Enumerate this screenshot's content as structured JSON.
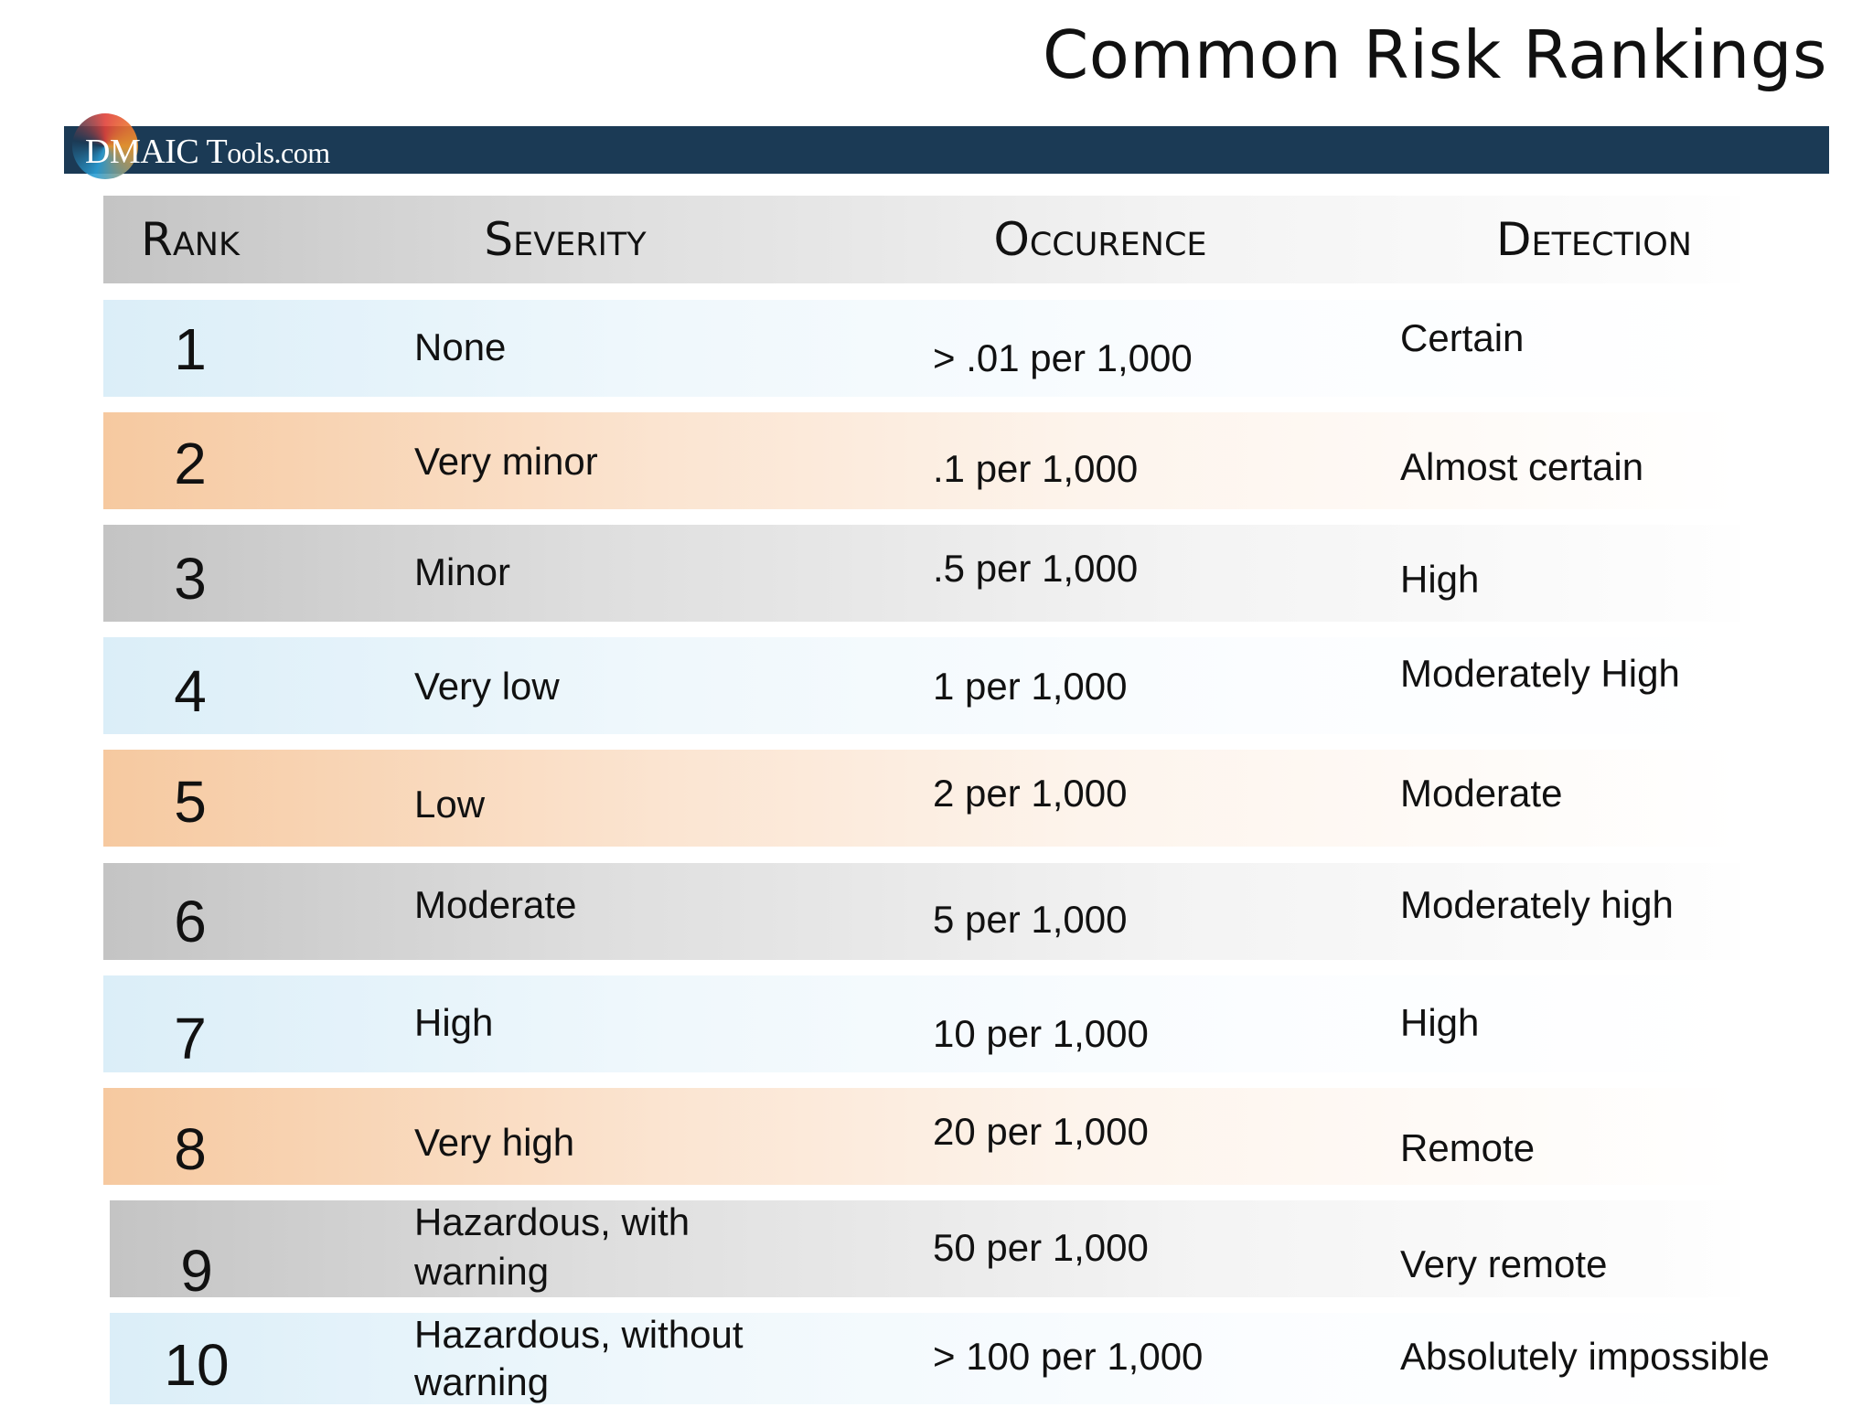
{
  "title": "Common Risk Rankings",
  "logo": {
    "text_main": "DMAIC T",
    "text_tail": "ools.com"
  },
  "headers": {
    "rank": "Rank",
    "severity": "Severity",
    "occurence": "Occurence",
    "detection": "Detection"
  },
  "rows": [
    {
      "rank": "1",
      "severity": "None",
      "occurence": "> .01 per 1,000",
      "detection": "Certain"
    },
    {
      "rank": "2",
      "severity": "Very minor",
      "occurence": ".1 per 1,000",
      "detection": "Almost certain"
    },
    {
      "rank": "3",
      "severity": "Minor",
      "occurence": ".5 per 1,000",
      "detection": "High"
    },
    {
      "rank": "4",
      "severity": "Very low",
      "occurence": "1 per 1,000",
      "detection": "Moderately High"
    },
    {
      "rank": "5",
      "severity": "Low",
      "occurence": "2 per 1,000",
      "detection": "Moderate"
    },
    {
      "rank": "6",
      "severity": "Moderate",
      "occurence": "5 per 1,000",
      "detection": "Moderately high"
    },
    {
      "rank": "7",
      "severity": "High",
      "occurence": "10 per 1,000",
      "detection": "High"
    },
    {
      "rank": "8",
      "severity": "Very high",
      "occurence": "20 per 1,000",
      "detection": "Remote"
    },
    {
      "rank": "9",
      "severity_line1": "Hazardous, with",
      "severity_line2": "warning",
      "occurence": "50 per 1,000",
      "detection": "Very remote"
    },
    {
      "rank": "10",
      "severity_line1": "Hazardous, without",
      "severity_line2": "warning",
      "occurence": "> 100 per 1,000",
      "detection": "Absolutely impossible"
    }
  ]
}
